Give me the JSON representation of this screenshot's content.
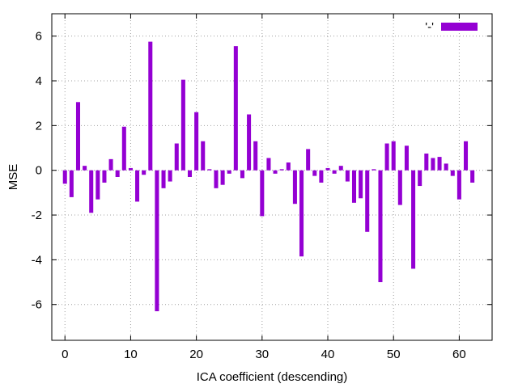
{
  "chart_data": {
    "type": "bar",
    "xlabel": "ICA coefficient (descending)",
    "ylabel": "MSE",
    "xlim": [
      -2,
      65
    ],
    "ylim": [
      -7.6,
      7.0
    ],
    "xticks": [
      0,
      10,
      20,
      30,
      40,
      50,
      60
    ],
    "yticks": [
      -6,
      -4,
      -2,
      0,
      2,
      4,
      6
    ],
    "grid": true,
    "legend_position": "top-right",
    "bar_color": "#9400d3",
    "series": [
      {
        "name": "'-'",
        "x": [
          0,
          1,
          2,
          3,
          4,
          5,
          6,
          7,
          8,
          9,
          10,
          11,
          12,
          13,
          14,
          15,
          16,
          17,
          18,
          19,
          20,
          21,
          22,
          23,
          24,
          25,
          26,
          27,
          28,
          29,
          30,
          31,
          32,
          33,
          34,
          35,
          36,
          37,
          38,
          39,
          40,
          41,
          42,
          43,
          44,
          45,
          46,
          47,
          48,
          49,
          50,
          51,
          52,
          53,
          54,
          55,
          56,
          57,
          58,
          59,
          60,
          61,
          62
        ],
        "values": [
          -0.6,
          -1.2,
          3.05,
          0.2,
          -1.9,
          -1.3,
          -0.55,
          0.5,
          -0.3,
          1.95,
          0.1,
          -1.4,
          -0.2,
          5.75,
          -6.3,
          -0.8,
          -0.5,
          1.2,
          4.05,
          -0.3,
          2.6,
          1.3,
          0.05,
          -0.8,
          -0.65,
          -0.15,
          5.55,
          -0.35,
          2.5,
          1.3,
          -2.05,
          0.55,
          -0.15,
          0.05,
          0.35,
          -1.5,
          -3.85,
          0.95,
          -0.25,
          -0.55,
          0.1,
          -0.15,
          0.2,
          -0.5,
          -1.45,
          -1.25,
          -2.75,
          0.05,
          -5.0,
          1.2,
          1.3,
          -1.55,
          1.1,
          -4.4,
          -0.7,
          0.75,
          0.55,
          0.6,
          0.3,
          -0.25,
          -1.3,
          1.3,
          -0.55
        ]
      }
    ]
  }
}
